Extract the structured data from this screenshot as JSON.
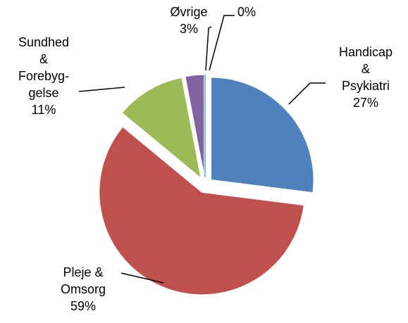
{
  "chart_data": {
    "type": "pie",
    "categories": [
      "Handicap\n& Psykiatri",
      "Pleje &\nOmsorg",
      "Sundhed\n&\nForebyg-\ngelse",
      "Øvrige",
      null
    ],
    "values": [
      27,
      59,
      11,
      3,
      0
    ],
    "value_labels": [
      "27%",
      "59%",
      "11%",
      "3%",
      "0%"
    ],
    "colors": [
      "#4f81bd",
      "#c0504d",
      "#9bbb59",
      "#8064a2",
      "#4bacc6"
    ]
  }
}
